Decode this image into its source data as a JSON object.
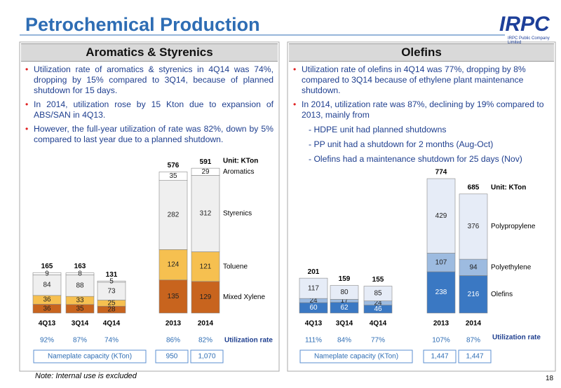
{
  "header": {
    "title": "Petrochemical Production",
    "logo": "IRPC",
    "logo_sub": "IRPC Public Company Limited"
  },
  "panels": [
    {
      "title": "Aromatics & Styrenics",
      "bullets": [
        "Utilization rate of aromatics & styrenics in 4Q14 was  74%, dropping by 15% compared to 3Q14, because of planned shutdown for 15 days.",
        "In 2014, utilization  rose by 15 Kton due to expansion of ABS/SAN in 4Q13.",
        "However, the full-year  utilization of rate was 82%, down by 5% compared to last year due to a planned shutdown."
      ]
    },
    {
      "title": "Olefins",
      "bullets": [
        "Utilization rate of olefins in 4Q14 was 77%, dropping by 8% compared  to 3Q14 because of ethylene plant maintenance shutdown.",
        "In 2014, utilization rate was 87%, declining by 19% compared to 2013, mainly from"
      ],
      "sub_items": [
        "- HDPE unit  had planned shutdowns",
        "- PP unit  had a shutdown  for 2 months (Aug-Oct)",
        "- Olefins had a maintenance shutdown for 25 days (Nov)"
      ]
    }
  ],
  "chart_data": [
    {
      "type": "bar",
      "stacked": true,
      "unit": "Unit: KTon",
      "categories": [
        "4Q13",
        "3Q14",
        "4Q14",
        "2013",
        "2014"
      ],
      "series": [
        {
          "name": "Mixed Xylene",
          "color": "#c8641e",
          "values": [
            36,
            35,
            28,
            135,
            129
          ]
        },
        {
          "name": "Toluene",
          "color": "#f6c050",
          "values": [
            36,
            33,
            25,
            124,
            121
          ]
        },
        {
          "name": "Styrenics",
          "color": "#efefef",
          "values": [
            84,
            88,
            73,
            282,
            312
          ]
        },
        {
          "name": "Aromatics",
          "color": "#ffffff",
          "values": [
            9,
            8,
            5,
            35,
            29
          ]
        }
      ],
      "totals": [
        165,
        163,
        131,
        576,
        591
      ],
      "utilization_label": "Utilization rate",
      "utilization": [
        "92%",
        "87%",
        "74%",
        "86%",
        "82%"
      ],
      "capacity_label": "Nameplate capacity (KTon)",
      "capacity": [
        "950",
        "1,070"
      ]
    },
    {
      "type": "bar",
      "stacked": true,
      "unit": "Unit: KTon",
      "categories": [
        "4Q13",
        "3Q14",
        "4Q14",
        "2013",
        "2014"
      ],
      "series": [
        {
          "name": "Olefins",
          "color": "#3a78c3",
          "values": [
            60,
            62,
            46,
            238,
            216
          ]
        },
        {
          "name": "Polyethylene",
          "color": "#9dbbe0",
          "values": [
            24,
            17,
            24,
            107,
            94
          ]
        },
        {
          "name": "Polypropylene",
          "color": "#e6ecf7",
          "values": [
            117,
            80,
            85,
            429,
            376
          ]
        }
      ],
      "totals": [
        201,
        159,
        155,
        774,
        685
      ],
      "utilization_label": "Utilization rate",
      "utilization": [
        "111%",
        "84%",
        "77%",
        "107%",
        "87%"
      ],
      "capacity_label": "Nameplate capacity (KTon)",
      "capacity": [
        "1,447",
        "1,447"
      ]
    }
  ],
  "footer": {
    "note": "Note: Internal use is excluded",
    "page": "18"
  }
}
